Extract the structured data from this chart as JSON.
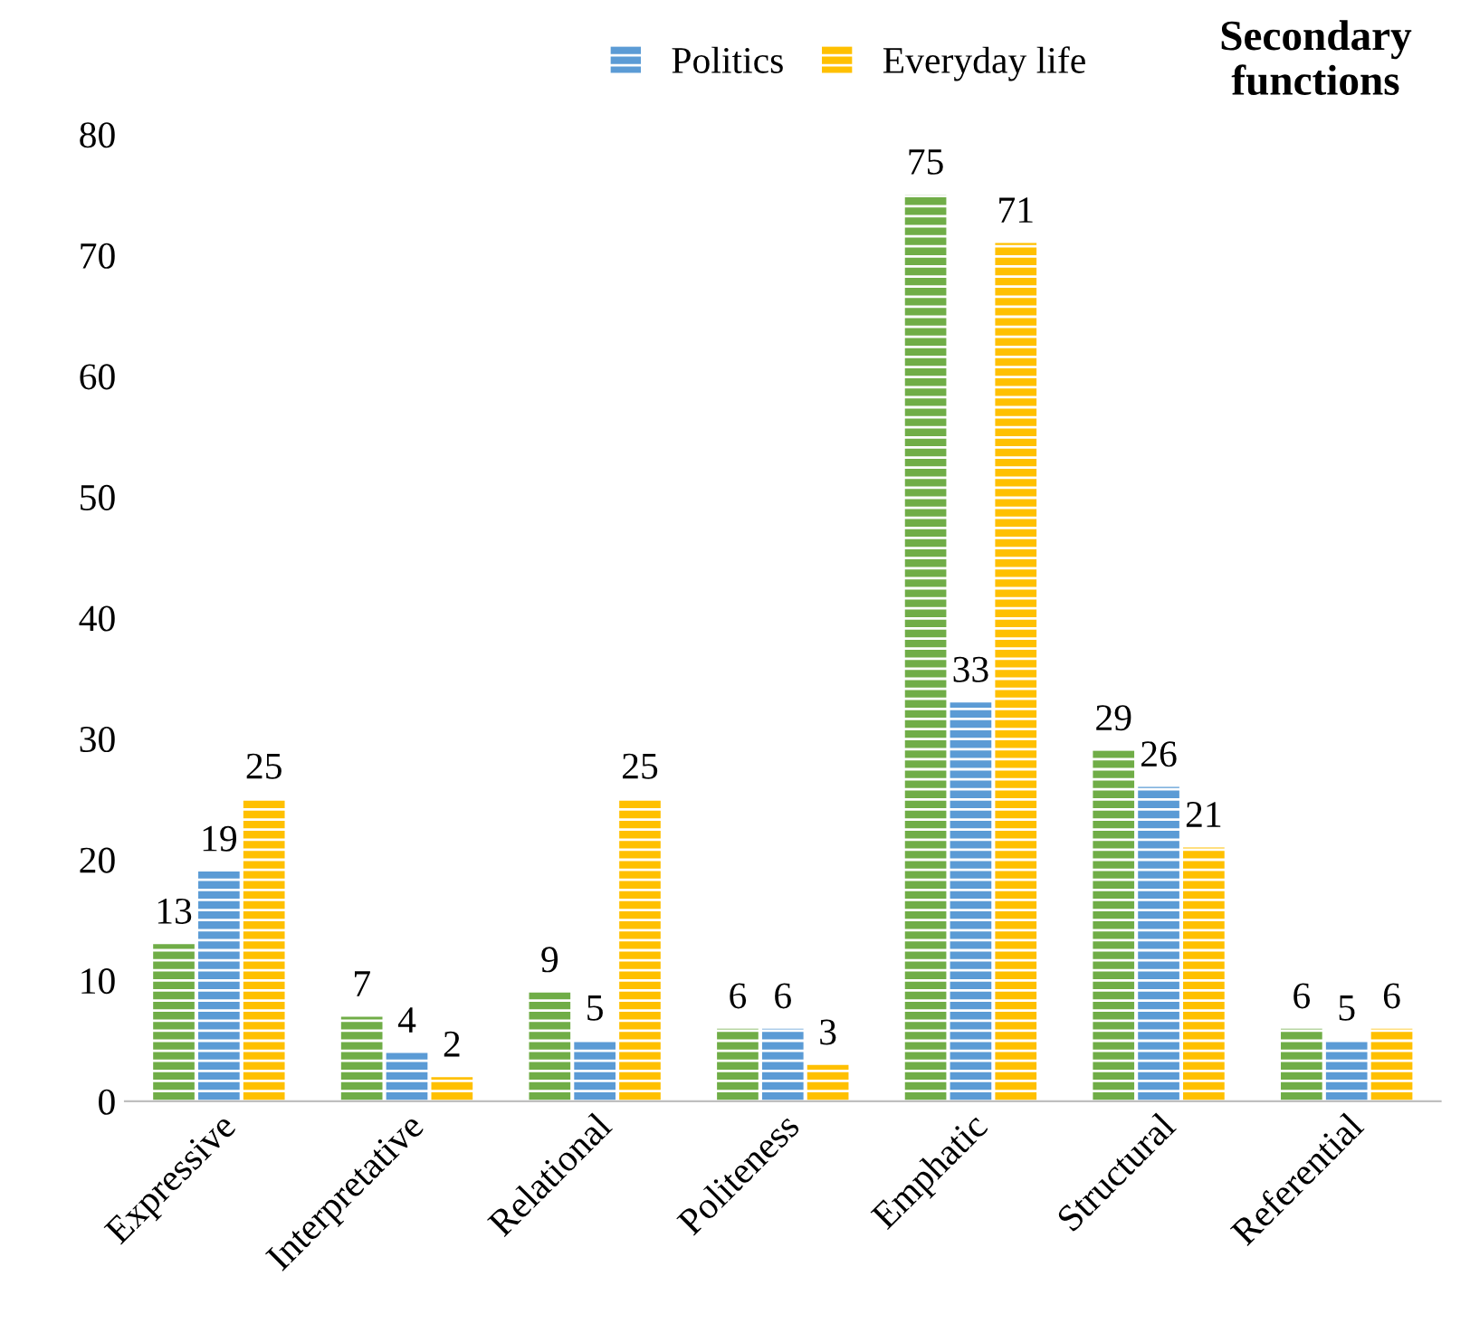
{
  "chart_data": {
    "type": "bar",
    "title": "Secondary functions",
    "categories": [
      "Expressive",
      "Interpretative",
      "Relational",
      "Politeness",
      "Emphatic",
      "Structural",
      "Referential"
    ],
    "series": [
      {
        "color": "#70ad47",
        "values": [
          13,
          7,
          9,
          6,
          75,
          29,
          6
        ]
      },
      {
        "name": "Politics",
        "color": "#5b9bd5",
        "values": [
          19,
          4,
          5,
          6,
          33,
          26,
          5
        ]
      },
      {
        "name": "Everyday life",
        "color": "#ffc000",
        "values": [
          25,
          2,
          25,
          3,
          71,
          21,
          6
        ]
      }
    ],
    "ylim": [
      0,
      80
    ],
    "yticks": [
      0,
      10,
      20,
      30,
      40,
      50,
      60,
      70,
      80
    ],
    "grid": false,
    "legend": "top",
    "data_labels": true
  }
}
